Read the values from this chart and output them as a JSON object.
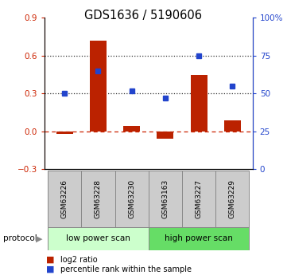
{
  "title": "GDS1636 / 5190606",
  "samples": [
    "GSM63226",
    "GSM63228",
    "GSM63230",
    "GSM63163",
    "GSM63227",
    "GSM63229"
  ],
  "log2_ratio": [
    -0.02,
    0.72,
    0.04,
    -0.06,
    0.45,
    0.09
  ],
  "percentile_rank": [
    50,
    65,
    52,
    47,
    75,
    55
  ],
  "bar_color": "#bb2200",
  "dot_color": "#2244cc",
  "ylim_left": [
    -0.3,
    0.9
  ],
  "yticks_left": [
    -0.3,
    0.0,
    0.3,
    0.6,
    0.9
  ],
  "ylim_right": [
    0,
    100
  ],
  "yticks_right": [
    0,
    25,
    50,
    75,
    100
  ],
  "hline_dashed_val": 0.0,
  "hline_dotted_vals": [
    0.3,
    0.6
  ],
  "protocol_labels": [
    "low power scan",
    "high power scan"
  ],
  "protocol_colors": [
    "#ccffcc",
    "#66dd66"
  ],
  "legend_items": [
    "log2 ratio",
    "percentile rank within the sample"
  ],
  "legend_colors": [
    "#bb2200",
    "#2244cc"
  ],
  "bar_width": 0.5
}
